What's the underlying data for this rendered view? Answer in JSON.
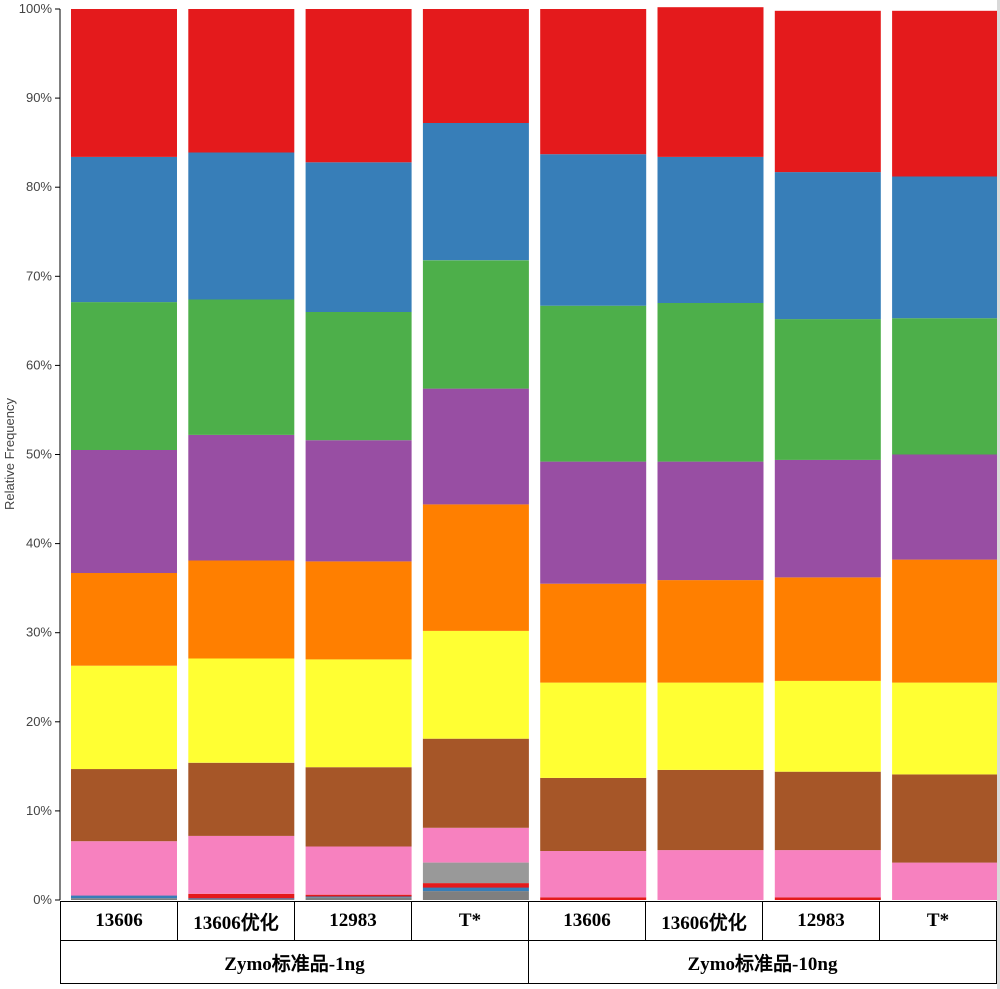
{
  "chart_data": {
    "type": "bar",
    "stacked": true,
    "ylabel": "Relative Frequency",
    "ylim": [
      0,
      100
    ],
    "yticks": [
      "0%",
      "10%",
      "20%",
      "30%",
      "40%",
      "50%",
      "60%",
      "70%",
      "80%",
      "90%",
      "100%"
    ],
    "categories": [
      "13606",
      "13606优化",
      "12983",
      "T*",
      "13606",
      "13606优化",
      "12983",
      "T*"
    ],
    "groups": [
      {
        "label": "Zymo标准品-1ng",
        "span": 4
      },
      {
        "label": "Zymo标准品-10ng",
        "span": 4
      }
    ],
    "series": [
      {
        "color": "#7f7f7f",
        "values": [
          0.2,
          0.1,
          0.3,
          1.0,
          0,
          0,
          0,
          0
        ]
      },
      {
        "color": "#377eb8",
        "values": [
          0.3,
          0.1,
          0.1,
          0.4,
          0,
          0,
          0,
          0
        ]
      },
      {
        "color": "#e41a1c",
        "values": [
          0,
          0.5,
          0.2,
          0.5,
          0.3,
          0,
          0.3,
          0
        ]
      },
      {
        "color": "#999999",
        "values": [
          0,
          0,
          0,
          2.3,
          0,
          0,
          0,
          0
        ]
      },
      {
        "color": "#f781bf",
        "values": [
          6.1,
          6.5,
          5.4,
          3.9,
          5.2,
          5.6,
          5.3,
          4.2
        ]
      },
      {
        "color": "#a65628",
        "values": [
          8.1,
          8.2,
          8.9,
          10.0,
          8.2,
          9.0,
          8.8,
          9.9
        ]
      },
      {
        "color": "#ffff33",
        "values": [
          11.6,
          11.7,
          12.1,
          12.1,
          10.7,
          9.8,
          10.2,
          10.3
        ]
      },
      {
        "color": "#ff7f00",
        "values": [
          10.4,
          11.0,
          11.0,
          14.2,
          11.1,
          11.5,
          11.6,
          13.8
        ]
      },
      {
        "color": "#984ea3",
        "values": [
          13.8,
          14.1,
          13.6,
          13.0,
          13.7,
          13.3,
          13.2,
          11.8
        ]
      },
      {
        "color": "#4daf4a",
        "values": [
          16.6,
          15.2,
          14.4,
          14.4,
          17.5,
          17.8,
          15.8,
          15.3
        ]
      },
      {
        "color": "#377eb8",
        "values": [
          16.3,
          16.5,
          16.8,
          15.4,
          17.0,
          16.4,
          16.5,
          15.9
        ]
      },
      {
        "color": "#e41a1c",
        "values": [
          16.6,
          16.1,
          17.2,
          12.8,
          16.3,
          16.8,
          18.1,
          18.6
        ]
      }
    ]
  }
}
